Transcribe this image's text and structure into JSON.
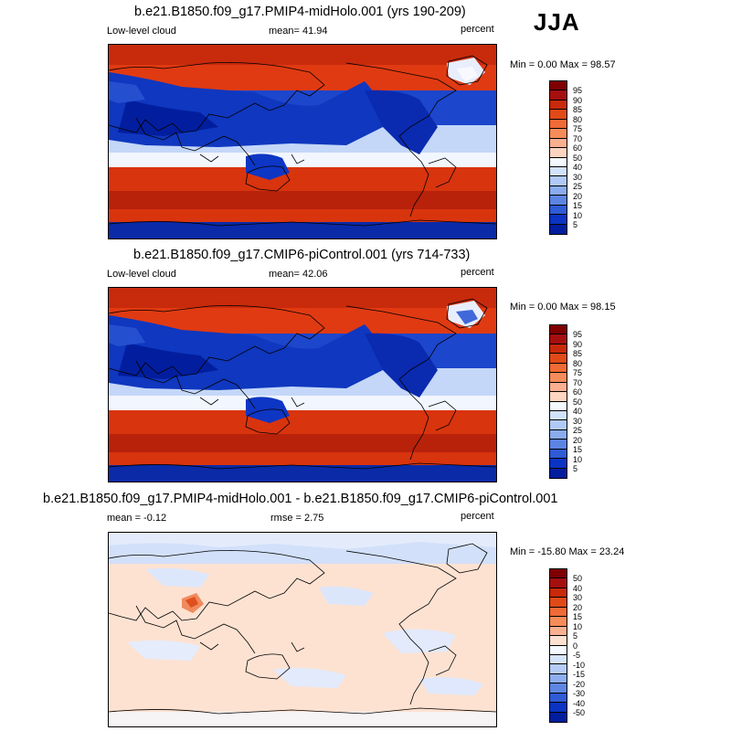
{
  "season": "JJA",
  "panels": [
    {
      "title": "b.e21.B1850.f09_g17.PMIP4-midHolo.001 (yrs 190-209)",
      "left_label": "Low-level cloud",
      "center_label": "mean=  41.94",
      "units": "percent",
      "minmax": "Min =   0.00 Max =  98.57",
      "colorbar": {
        "labels": [
          "95",
          "90",
          "85",
          "80",
          "75",
          "70",
          "60",
          "50",
          "40",
          "30",
          "25",
          "20",
          "15",
          "10",
          "5"
        ],
        "colors": [
          "#7f0000",
          "#a50f0f",
          "#c8290a",
          "#e04a18",
          "#f06a35",
          "#f68c5a",
          "#fab090",
          "#fdd5c0",
          "#f4f8ff",
          "#d2e2fb",
          "#b0c9f6",
          "#8aabee",
          "#5d84e2",
          "#2f5bd6",
          "#0b34c4",
          "#021e9e"
        ]
      }
    },
    {
      "title": "b.e21.B1850.f09_g17.CMIP6-piControl.001 (yrs 714-733)",
      "left_label": "Low-level cloud",
      "center_label": "mean=  42.06",
      "units": "percent",
      "minmax": "Min =   0.00 Max =  98.15",
      "colorbar": {
        "labels": [
          "95",
          "90",
          "85",
          "80",
          "75",
          "70",
          "60",
          "50",
          "40",
          "30",
          "25",
          "20",
          "15",
          "10",
          "5"
        ],
        "colors": [
          "#7f0000",
          "#a50f0f",
          "#c8290a",
          "#e04a18",
          "#f06a35",
          "#f68c5a",
          "#fab090",
          "#fdd5c0",
          "#f4f8ff",
          "#d2e2fb",
          "#b0c9f6",
          "#8aabee",
          "#5d84e2",
          "#2f5bd6",
          "#0b34c4",
          "#021e9e"
        ]
      }
    },
    {
      "title": "b.e21.B1850.f09_g17.PMIP4-midHolo.001 - b.e21.B1850.f09_g17.CMIP6-piControl.001",
      "left_label": "mean =  -0.12",
      "center_label": "rmse =   2.75",
      "units": "percent",
      "minmax": "Min = -15.80 Max =  23.24",
      "colorbar": {
        "labels": [
          "50",
          "40",
          "30",
          "20",
          "15",
          "10",
          "5",
          "0",
          "-5",
          "-10",
          "-15",
          "-20",
          "-30",
          "-40",
          "-50"
        ],
        "colors": [
          "#7f0000",
          "#a50f0f",
          "#c8290a",
          "#e04a18",
          "#f06a35",
          "#f68c5a",
          "#fab090",
          "#fde0d0",
          "#f6f9ff",
          "#d6e4fb",
          "#b5ccf6",
          "#8eaeef",
          "#5f86e2",
          "#2f5bd6",
          "#0b34c4",
          "#021e9e"
        ]
      }
    }
  ]
}
